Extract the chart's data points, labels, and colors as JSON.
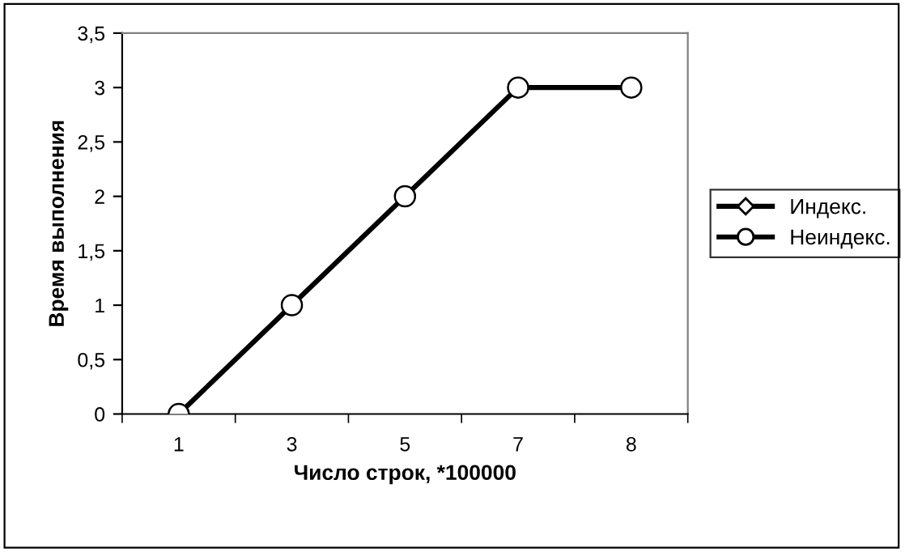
{
  "chart_data": {
    "type": "line",
    "xlabel": "Число строк, *100000",
    "ylabel": "Время выполнения",
    "categories": [
      "1",
      "3",
      "5",
      "7",
      "8"
    ],
    "series": [
      {
        "name": "Индекс.",
        "color": "#000000",
        "marker": "diamond",
        "values": [
          null,
          null,
          null,
          null,
          null
        ]
      },
      {
        "name": "Неиндекс.",
        "color": "#000000",
        "marker": "circle",
        "values": [
          0,
          1,
          2,
          3,
          3
        ]
      }
    ],
    "ylim": [
      0,
      3.5
    ],
    "yticks": [
      0,
      {
        "value": 0.5,
        "label": "0,5"
      },
      1,
      {
        "value": 1.5,
        "label": "1,5"
      },
      2,
      {
        "value": 2.5,
        "label": "2,5"
      },
      3,
      {
        "value": 3.5,
        "label": "3,5"
      }
    ],
    "grid": false,
    "legend": "right",
    "line_style": "solid"
  }
}
